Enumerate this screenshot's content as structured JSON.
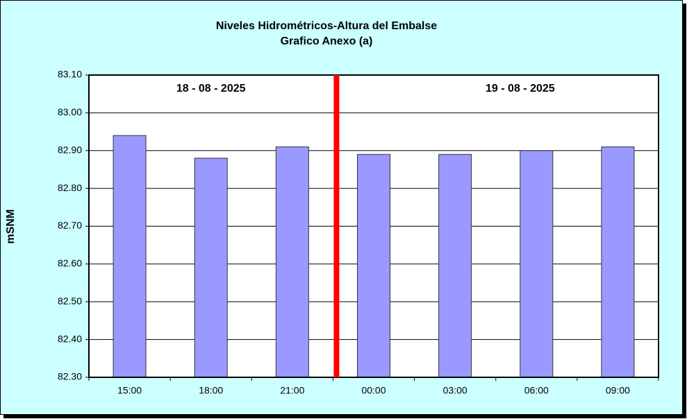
{
  "chart_data": {
    "type": "bar",
    "title": "Niveles Hidrométricos-Altura del Embalse",
    "subtitle": "Grafico Anexo (a)",
    "y_label": "mSNM",
    "annotations": [
      "18 - 08 - 2025",
      "19 - 08 - 2025"
    ],
    "categories": [
      "15:00",
      "18:00",
      "21:00",
      "00:00",
      "03:00",
      "06:00",
      "09:00"
    ],
    "values": [
      82.94,
      82.88,
      82.91,
      82.89,
      82.89,
      82.9,
      82.91
    ],
    "color": "#9999ff",
    "ylim": [
      82.3,
      83.1
    ],
    "yticks": [
      {
        "value": 82.3,
        "label": "82.30"
      },
      {
        "value": 82.4,
        "label": "82.40"
      },
      {
        "value": 82.5,
        "label": "82.50"
      },
      {
        "value": 82.6,
        "label": "82.60"
      },
      {
        "value": 82.7,
        "label": "82.70"
      },
      {
        "value": 82.8,
        "label": "82.80"
      },
      {
        "value": 82.9,
        "label": "82.90"
      },
      {
        "value": 83.0,
        "label": "83.00"
      },
      {
        "value": 83.1,
        "label": "83.10"
      }
    ],
    "grid": true
  }
}
